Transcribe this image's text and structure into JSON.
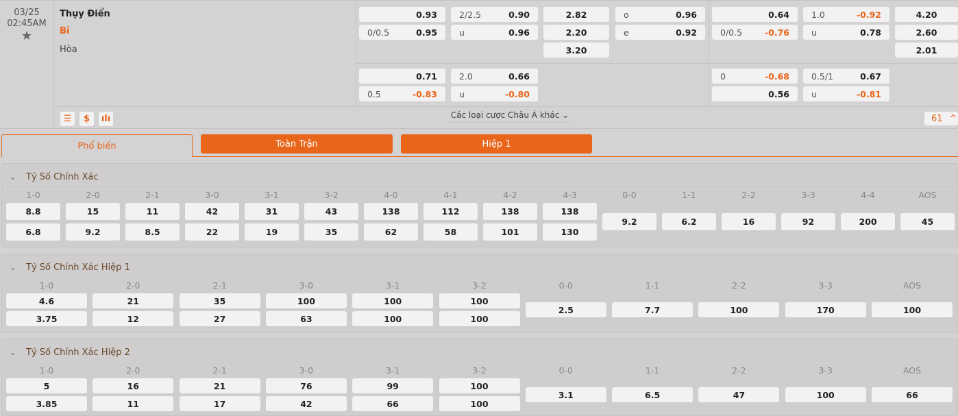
{
  "match": {
    "date": "03/25",
    "time": "02:45AM",
    "home": "Thụy Điển",
    "away": "Bỉ",
    "draw": "Hòa",
    "more_label": "Các loại cược Châu Á khác",
    "count": "61"
  },
  "colors": {
    "accent": "#e8651a",
    "box": "#f2f2f2",
    "bg": "#d4d2d3"
  },
  "odds": {
    "main": [
      [
        {
          "l": "",
          "v": "0.93"
        },
        {
          "l": "0/0.5",
          "v": "0.95"
        }
      ],
      [
        {
          "l": "2/2.5",
          "v": "0.90"
        },
        {
          "l": "u",
          "v": "0.96"
        }
      ],
      [
        {
          "l": "",
          "v": "2.82"
        },
        {
          "l": "",
          "v": "2.20"
        },
        {
          "l": "",
          "v": "3.20"
        }
      ],
      [
        {
          "l": "o",
          "v": "0.96"
        },
        {
          "l": "e",
          "v": "0.92"
        }
      ],
      [
        {
          "l": "",
          "v": "0.64"
        },
        {
          "l": "0/0.5",
          "v": "-0.76"
        }
      ],
      [
        {
          "l": "1.0",
          "v": "-0.92"
        },
        {
          "l": "u",
          "v": "0.78"
        }
      ],
      [
        {
          "l": "",
          "v": "4.20"
        },
        {
          "l": "",
          "v": "2.60"
        },
        {
          "l": "",
          "v": "2.01"
        }
      ]
    ],
    "alt": [
      [
        {
          "l": "",
          "v": "0.71"
        },
        {
          "l": "0.5",
          "v": "-0.83"
        }
      ],
      [
        {
          "l": "2.0",
          "v": "0.66"
        },
        {
          "l": "u",
          "v": "-0.80"
        }
      ],
      [],
      [],
      [
        {
          "l": "0",
          "v": "-0.68"
        },
        {
          "l": "",
          "v": "0.56"
        }
      ],
      [
        {
          "l": "0.5/1",
          "v": "0.67"
        },
        {
          "l": "u",
          "v": "-0.81"
        }
      ],
      []
    ]
  },
  "icons": [
    "scoreboard-icon",
    "dollar-icon",
    "stats-icon"
  ],
  "tabs": [
    {
      "label": "Phổ biến",
      "selected": true
    },
    {
      "label": "Toàn Trận"
    },
    {
      "label": "Hiệp 1"
    }
  ],
  "sections": [
    {
      "title": "Tỷ Số Chính Xác",
      "cols": [
        {
          "s": "1-0",
          "v": [
            "8.8",
            "6.8"
          ]
        },
        {
          "s": "2-0",
          "v": [
            "15",
            "9.2"
          ]
        },
        {
          "s": "2-1",
          "v": [
            "11",
            "8.5"
          ]
        },
        {
          "s": "3-0",
          "v": [
            "42",
            "22"
          ]
        },
        {
          "s": "3-1",
          "v": [
            "31",
            "19"
          ]
        },
        {
          "s": "3-2",
          "v": [
            "43",
            "35"
          ]
        },
        {
          "s": "4-0",
          "v": [
            "138",
            "62"
          ]
        },
        {
          "s": "4-1",
          "v": [
            "112",
            "58"
          ]
        },
        {
          "s": "4-2",
          "v": [
            "138",
            "101"
          ]
        },
        {
          "s": "4-3",
          "v": [
            "138",
            "130"
          ]
        },
        {
          "s": "0-0",
          "v": [
            "9.2"
          ]
        },
        {
          "s": "1-1",
          "v": [
            "6.2"
          ]
        },
        {
          "s": "2-2",
          "v": [
            "16"
          ]
        },
        {
          "s": "3-3",
          "v": [
            "92"
          ]
        },
        {
          "s": "4-4",
          "v": [
            "200"
          ]
        },
        {
          "s": "AOS",
          "v": [
            "45"
          ]
        }
      ]
    },
    {
      "title": "Tỷ Số Chính Xác Hiệp 1",
      "cols": [
        {
          "s": "1-0",
          "v": [
            "4.6",
            "3.75"
          ]
        },
        {
          "s": "2-0",
          "v": [
            "21",
            "12"
          ]
        },
        {
          "s": "2-1",
          "v": [
            "35",
            "27"
          ]
        },
        {
          "s": "3-0",
          "v": [
            "100",
            "63"
          ]
        },
        {
          "s": "3-1",
          "v": [
            "100",
            "100"
          ]
        },
        {
          "s": "3-2",
          "v": [
            "100",
            "100"
          ]
        },
        {
          "s": "0-0",
          "v": [
            "2.5"
          ]
        },
        {
          "s": "1-1",
          "v": [
            "7.7"
          ]
        },
        {
          "s": "2-2",
          "v": [
            "100"
          ]
        },
        {
          "s": "3-3",
          "v": [
            "170"
          ]
        },
        {
          "s": "AOS",
          "v": [
            "100"
          ]
        }
      ]
    },
    {
      "title": "Tỷ Số Chính Xác Hiệp 2",
      "cols": [
        {
          "s": "1-0",
          "v": [
            "5",
            "3.85"
          ]
        },
        {
          "s": "2-0",
          "v": [
            "16",
            "11"
          ]
        },
        {
          "s": "2-1",
          "v": [
            "21",
            "17"
          ]
        },
        {
          "s": "3-0",
          "v": [
            "76",
            "42"
          ]
        },
        {
          "s": "3-1",
          "v": [
            "99",
            "66"
          ]
        },
        {
          "s": "3-2",
          "v": [
            "100",
            "100"
          ]
        },
        {
          "s": "0-0",
          "v": [
            "3.1"
          ]
        },
        {
          "s": "1-1",
          "v": [
            "6.5"
          ]
        },
        {
          "s": "2-2",
          "v": [
            "47"
          ]
        },
        {
          "s": "3-3",
          "v": [
            "100"
          ]
        },
        {
          "s": "AOS",
          "v": [
            "66"
          ]
        }
      ]
    }
  ]
}
